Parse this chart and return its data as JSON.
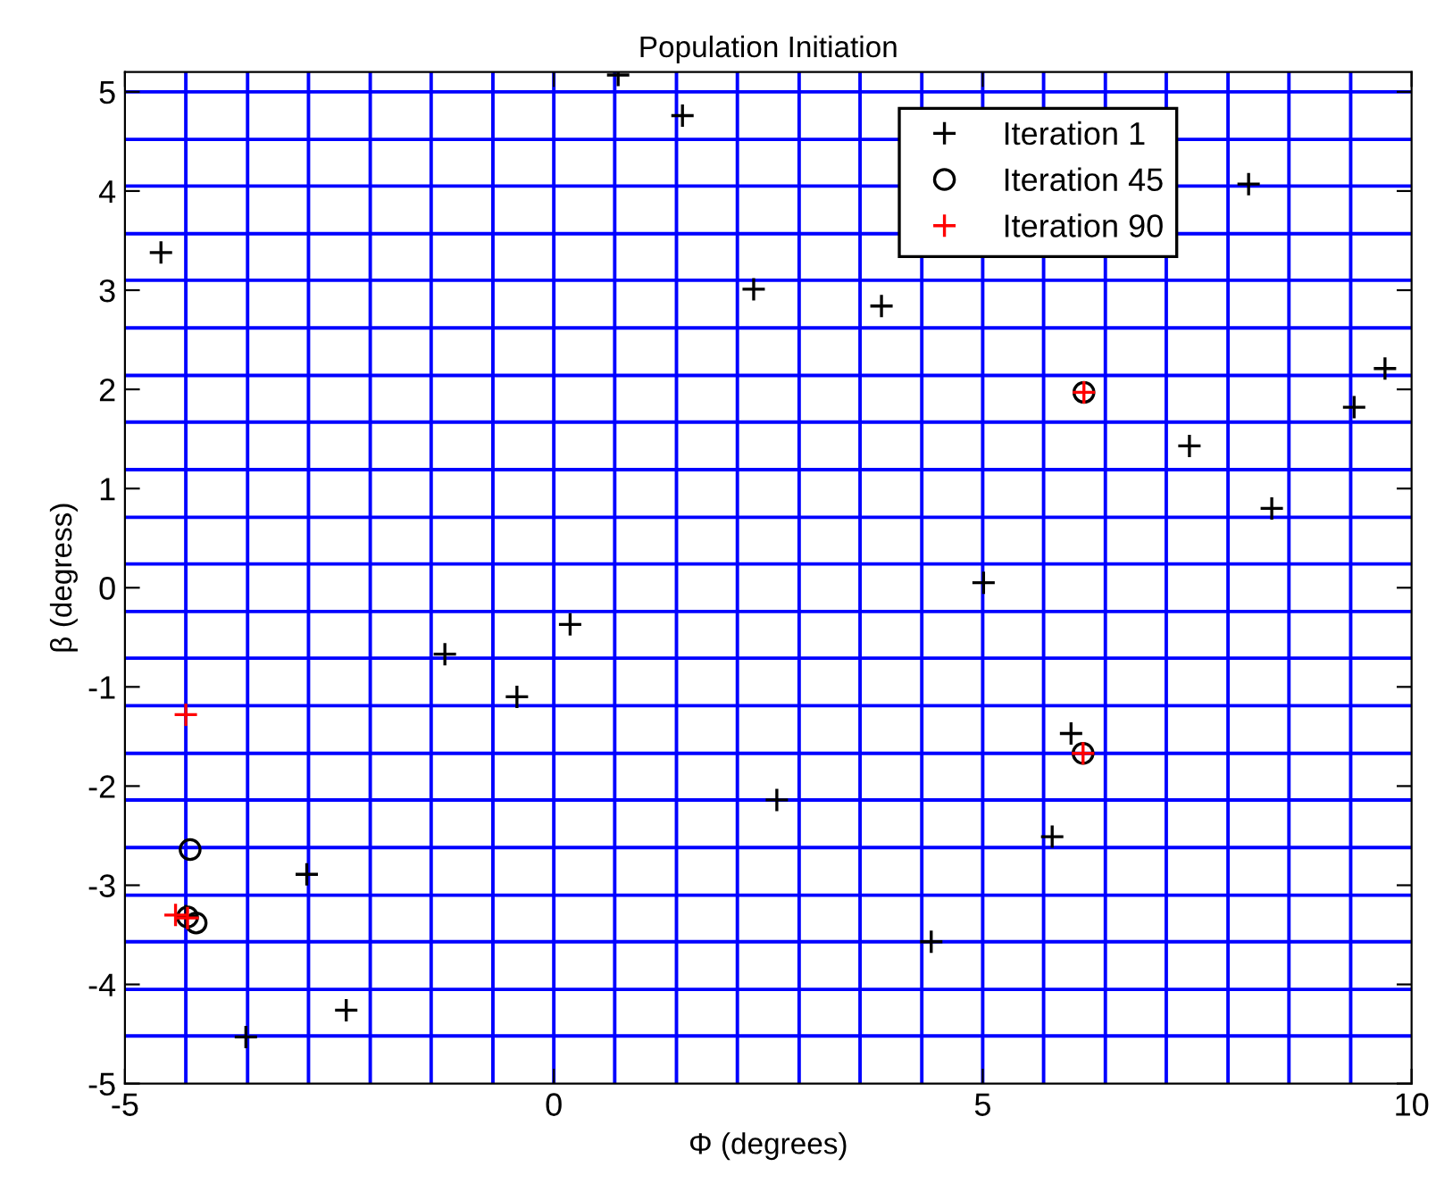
{
  "chart_data": {
    "type": "scatter",
    "title": "Population Initiation",
    "xlabel": "Φ (degrees)",
    "ylabel": "β (degress)",
    "xlim": [
      -5,
      10
    ],
    "ylim": [
      -5,
      5.2
    ],
    "xticks": [
      -5,
      0,
      5,
      10
    ],
    "yticks": [
      -5,
      -4,
      -3,
      -2,
      -1,
      0,
      1,
      2,
      3,
      4,
      5
    ],
    "legend": "top right",
    "grid": false,
    "series": [
      {
        "name": "Iteration 1",
        "color": "#000000",
        "marker": "cross",
        "x": [
          -4.58,
          0.75,
          1.5,
          2.33,
          3.82,
          8.1,
          9.69,
          9.33,
          7.41,
          8.37,
          5.01,
          0.19,
          -1.27,
          -0.43,
          -2.88,
          -2.42,
          -3.59,
          6.03,
          5.81,
          4.4,
          2.6,
          -4.29
        ],
        "values": [
          3.38,
          5.17,
          4.76,
          3.01,
          2.84,
          4.07,
          2.21,
          1.82,
          1.43,
          0.8,
          0.05,
          -0.37,
          -0.67,
          -1.1,
          -2.89,
          -4.26,
          -4.53,
          -1.47,
          -2.51,
          -3.57,
          -2.14,
          -3.31
        ]
      },
      {
        "name": "Iteration 45",
        "color": "#000000",
        "marker": "circle",
        "x": [
          6.18,
          6.17,
          -4.24,
          -4.27,
          -4.17
        ],
        "values": [
          1.97,
          -1.67,
          -2.64,
          -3.32,
          -3.38
        ]
      },
      {
        "name": "Iteration 90",
        "color": "#ff0000",
        "marker": "cross",
        "x": [
          6.18,
          6.17,
          -4.29,
          -4.41,
          -4.27
        ],
        "values": [
          1.97,
          -1.67,
          -1.28,
          -3.3,
          -3.33
        ]
      }
    ],
    "ref_lines": [
      {
        "axis": "x",
        "value": -4.29,
        "color": "#0000ff"
      },
      {
        "axis": "x",
        "value": -3.57,
        "color": "#0000ff"
      },
      {
        "axis": "x",
        "value": -2.86,
        "color": "#0000ff"
      },
      {
        "axis": "x",
        "value": -2.14,
        "color": "#0000ff"
      },
      {
        "axis": "x",
        "value": -1.43,
        "color": "#0000ff"
      },
      {
        "axis": "x",
        "value": -0.71,
        "color": "#0000ff"
      },
      {
        "axis": "x",
        "value": 0,
        "color": "#0000ff"
      },
      {
        "axis": "x",
        "value": 0.71,
        "color": "#0000ff"
      },
      {
        "axis": "x",
        "value": 1.43,
        "color": "#0000ff"
      },
      {
        "axis": "x",
        "value": 2.14,
        "color": "#0000ff"
      },
      {
        "axis": "x",
        "value": 2.86,
        "color": "#0000ff"
      },
      {
        "axis": "x",
        "value": 3.57,
        "color": "#0000ff"
      },
      {
        "axis": "x",
        "value": 4.29,
        "color": "#0000ff"
      },
      {
        "axis": "x",
        "value": 5,
        "color": "#0000ff"
      },
      {
        "axis": "x",
        "value": 5.71,
        "color": "#0000ff"
      },
      {
        "axis": "x",
        "value": 6.43,
        "color": "#0000ff"
      },
      {
        "axis": "x",
        "value": 7.14,
        "color": "#0000ff"
      },
      {
        "axis": "x",
        "value": 7.86,
        "color": "#0000ff"
      },
      {
        "axis": "x",
        "value": 8.57,
        "color": "#0000ff"
      },
      {
        "axis": "x",
        "value": 9.29,
        "color": "#0000ff"
      },
      {
        "axis": "y",
        "value": -4.52,
        "color": "#0000ff"
      },
      {
        "axis": "y",
        "value": -4.05,
        "color": "#0000ff"
      },
      {
        "axis": "y",
        "value": -3.57,
        "color": "#0000ff"
      },
      {
        "axis": "y",
        "value": -3.1,
        "color": "#0000ff"
      },
      {
        "axis": "y",
        "value": -2.62,
        "color": "#0000ff"
      },
      {
        "axis": "y",
        "value": -2.14,
        "color": "#0000ff"
      },
      {
        "axis": "y",
        "value": -1.67,
        "color": "#0000ff"
      },
      {
        "axis": "y",
        "value": -1.19,
        "color": "#0000ff"
      },
      {
        "axis": "y",
        "value": -0.71,
        "color": "#0000ff"
      },
      {
        "axis": "y",
        "value": -0.24,
        "color": "#0000ff"
      },
      {
        "axis": "y",
        "value": 0.24,
        "color": "#0000ff"
      },
      {
        "axis": "y",
        "value": 0.71,
        "color": "#0000ff"
      },
      {
        "axis": "y",
        "value": 1.19,
        "color": "#0000ff"
      },
      {
        "axis": "y",
        "value": 1.67,
        "color": "#0000ff"
      },
      {
        "axis": "y",
        "value": 2.14,
        "color": "#0000ff"
      },
      {
        "axis": "y",
        "value": 2.62,
        "color": "#0000ff"
      },
      {
        "axis": "y",
        "value": 3.1,
        "color": "#0000ff"
      },
      {
        "axis": "y",
        "value": 3.57,
        "color": "#0000ff"
      },
      {
        "axis": "y",
        "value": 4.05,
        "color": "#0000ff"
      },
      {
        "axis": "y",
        "value": 4.52,
        "color": "#0000ff"
      },
      {
        "axis": "y",
        "value": 5,
        "color": "#0000ff"
      }
    ]
  }
}
